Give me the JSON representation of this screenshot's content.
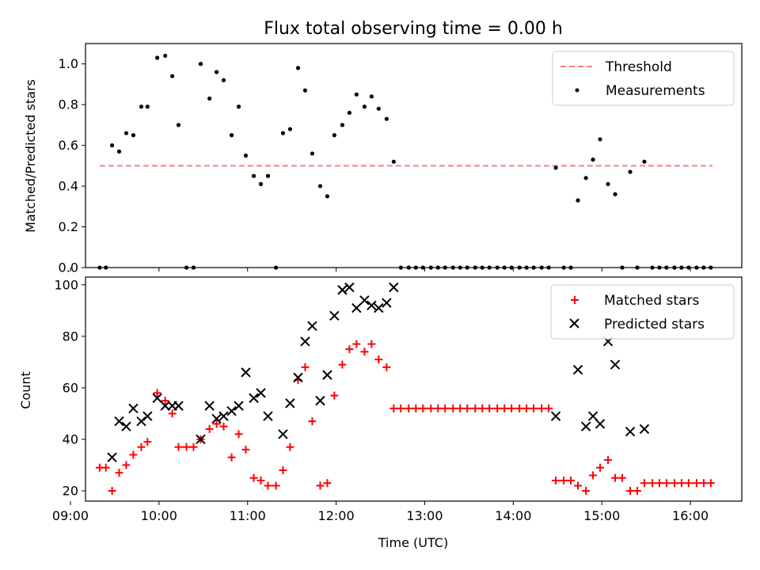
{
  "chart_data": [
    {
      "type": "scatter",
      "title": "Flux total observing time = 0.00 h",
      "xlabel": "",
      "ylabel": "Matched/Predicted stars",
      "xlim": [
        9.17,
        16.58
      ],
      "ylim": [
        0,
        1.1
      ],
      "xticks": [
        9,
        10,
        11,
        12,
        13,
        14,
        15,
        16
      ],
      "yticks": [
        0.0,
        0.2,
        0.4,
        0.6,
        0.8,
        1.0
      ],
      "ytick_labels": [
        "0.0",
        "0.2",
        "0.4",
        "0.6",
        "0.8",
        "1.0"
      ],
      "legend_position": "top-right",
      "series": [
        {
          "name": "Threshold",
          "kind": "dashed-line",
          "color": "#ff7f7f",
          "x": [
            9.33,
            16.25
          ],
          "y": [
            0.5,
            0.5
          ]
        },
        {
          "name": "Measurements",
          "kind": "points",
          "color": "#000000",
          "x": [
            9.33,
            9.4,
            9.47,
            9.55,
            9.63,
            9.71,
            9.8,
            9.87,
            9.98,
            10.07,
            10.15,
            10.22,
            10.31,
            10.39,
            10.47,
            10.57,
            10.65,
            10.73,
            10.82,
            10.9,
            10.98,
            11.07,
            11.15,
            11.23,
            11.32,
            11.4,
            11.48,
            11.57,
            11.65,
            11.73,
            11.82,
            11.9,
            11.98,
            12.07,
            12.15,
            12.23,
            12.32,
            12.4,
            12.48,
            12.57,
            12.65,
            12.73,
            12.82,
            12.9,
            12.98,
            13.07,
            13.15,
            13.23,
            13.32,
            13.4,
            13.48,
            13.57,
            13.65,
            13.73,
            13.82,
            13.9,
            13.98,
            14.07,
            14.15,
            14.23,
            14.32,
            14.4,
            14.48,
            14.57,
            14.65,
            14.73,
            14.82,
            14.9,
            14.98,
            15.07,
            15.15,
            15.23,
            15.32,
            15.4,
            15.48,
            15.57,
            15.65,
            15.73,
            15.82,
            15.9,
            15.98,
            16.07,
            16.15,
            16.23
          ],
          "y": [
            0.0,
            0.0,
            0.6,
            0.57,
            0.66,
            0.65,
            0.79,
            0.79,
            1.03,
            1.04,
            0.94,
            0.7,
            0.0,
            0.0,
            1.0,
            0.83,
            0.96,
            0.92,
            0.65,
            0.79,
            0.55,
            0.45,
            0.41,
            0.45,
            0.0,
            0.66,
            0.68,
            0.98,
            0.87,
            0.56,
            0.4,
            0.35,
            0.65,
            0.7,
            0.76,
            0.85,
            0.79,
            0.84,
            0.78,
            0.73,
            0.52,
            0.0,
            0.0,
            0.0,
            0.0,
            0.0,
            0.0,
            0.0,
            0.0,
            0.0,
            0.0,
            0.0,
            0.0,
            0.0,
            0.0,
            0.0,
            0.0,
            0.0,
            0.0,
            0.0,
            0.0,
            0.0,
            0.49,
            0.0,
            0.0,
            0.33,
            0.44,
            0.53,
            0.63,
            0.41,
            0.36,
            0.0,
            0.47,
            0.0,
            0.52,
            0.0,
            0.0,
            0.0,
            0.0,
            0.0,
            0.0,
            0.0,
            0.0,
            0.0
          ]
        }
      ]
    },
    {
      "type": "scatter",
      "title": "",
      "xlabel": "Time (UTC)",
      "ylabel": "Count",
      "xlim": [
        9.17,
        16.58
      ],
      "ylim": [
        16.0,
        103.0
      ],
      "xticks": [
        9,
        10,
        11,
        12,
        13,
        14,
        15,
        16
      ],
      "xtick_labels": [
        "09:00",
        "10:00",
        "11:00",
        "12:00",
        "13:00",
        "14:00",
        "15:00",
        "16:00"
      ],
      "yticks": [
        20,
        40,
        60,
        80,
        100
      ],
      "ytick_labels": [
        "20",
        "40",
        "60",
        "80",
        "100"
      ],
      "legend_position": "top-right",
      "series": [
        {
          "name": "Matched stars",
          "marker": "+",
          "color": "#ff0000",
          "x": [
            9.33,
            9.4,
            9.47,
            9.55,
            9.63,
            9.71,
            9.8,
            9.87,
            9.98,
            10.07,
            10.15,
            10.22,
            10.31,
            10.39,
            10.47,
            10.57,
            10.65,
            10.73,
            10.82,
            10.9,
            10.98,
            11.07,
            11.15,
            11.23,
            11.32,
            11.4,
            11.48,
            11.57,
            11.65,
            11.73,
            11.82,
            11.9,
            11.98,
            12.07,
            12.15,
            12.23,
            12.32,
            12.4,
            12.48,
            12.57,
            12.65,
            12.73,
            12.82,
            12.9,
            12.98,
            13.07,
            13.15,
            13.23,
            13.32,
            13.4,
            13.48,
            13.57,
            13.65,
            13.73,
            13.82,
            13.9,
            13.98,
            14.07,
            14.15,
            14.23,
            14.32,
            14.4,
            14.48,
            14.57,
            14.65,
            14.73,
            14.82,
            14.9,
            14.98,
            15.07,
            15.15,
            15.23,
            15.32,
            15.4,
            15.48,
            15.57,
            15.65,
            15.73,
            15.82,
            15.9,
            15.98,
            16.07,
            16.15,
            16.23
          ],
          "y": [
            29,
            29,
            20,
            27,
            30,
            34,
            37,
            39,
            58,
            55,
            50,
            37,
            37,
            37,
            40,
            44,
            46,
            45,
            33,
            42,
            36,
            25,
            24,
            22,
            22,
            28,
            37,
            63,
            68,
            47,
            22,
            23,
            57,
            69,
            75,
            77,
            74,
            77,
            71,
            68,
            52,
            52,
            52,
            52,
            52,
            52,
            52,
            52,
            52,
            52,
            52,
            52,
            52,
            52,
            52,
            52,
            52,
            52,
            52,
            52,
            52,
            52,
            24,
            24,
            24,
            22,
            20,
            26,
            29,
            32,
            25,
            25,
            20,
            20,
            23,
            23,
            23,
            23,
            23,
            23,
            23,
            23,
            23,
            23
          ]
        },
        {
          "name": "Predicted stars",
          "marker": "x",
          "color": "#000000",
          "x": [
            9.47,
            9.55,
            9.63,
            9.71,
            9.8,
            9.87,
            9.98,
            10.07,
            10.15,
            10.22,
            10.47,
            10.57,
            10.65,
            10.73,
            10.82,
            10.9,
            10.98,
            11.07,
            11.15,
            11.23,
            11.4,
            11.48,
            11.57,
            11.65,
            11.73,
            11.82,
            11.9,
            11.98,
            12.07,
            12.15,
            12.23,
            12.32,
            12.4,
            12.48,
            12.57,
            12.65,
            14.48,
            14.73,
            14.82,
            14.9,
            14.98,
            15.07,
            15.15,
            15.32,
            15.48
          ],
          "y": [
            33,
            47,
            45,
            52,
            47,
            49,
            56,
            53,
            53,
            53,
            40,
            53,
            48,
            49,
            51,
            53,
            66,
            56,
            58,
            49,
            42,
            54,
            64,
            78,
            84,
            55,
            65,
            88,
            98,
            99,
            91,
            94,
            92,
            91,
            93,
            99,
            49,
            67,
            45,
            49,
            46,
            78,
            69,
            43,
            44
          ]
        }
      ]
    }
  ]
}
